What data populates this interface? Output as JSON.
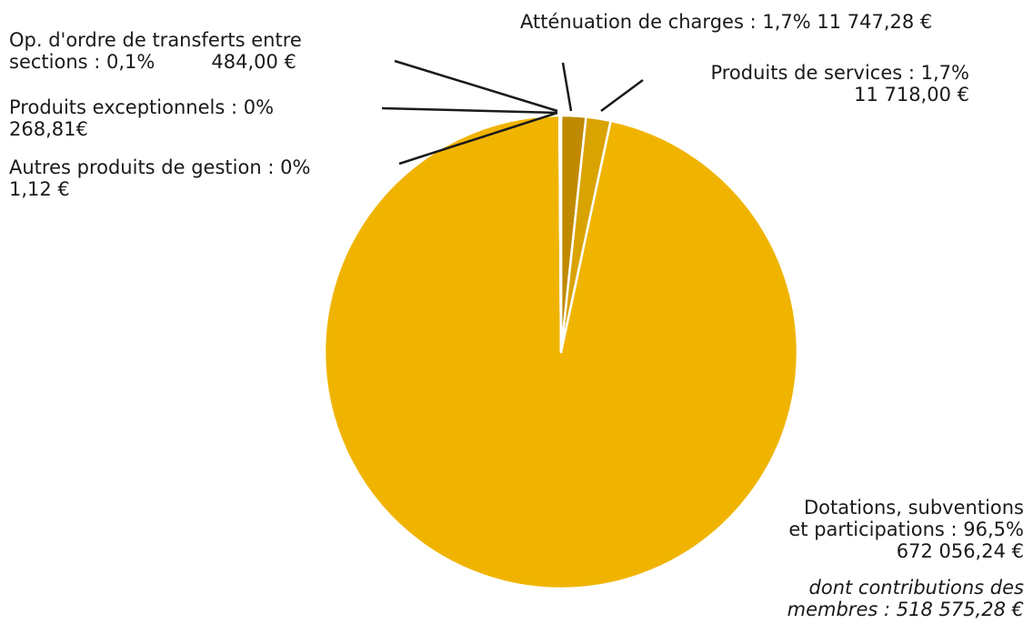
{
  "chart_data": {
    "type": "pie",
    "title": "",
    "colors": {
      "main": "#F0B400",
      "small_a": "#C08A00",
      "small_b": "#D9A300",
      "leader": "#1a1a1a",
      "separator": "#ffffff"
    },
    "slices": [
      {
        "key": "attenuation",
        "name": "Atténuation de charges",
        "percent": "1,7%",
        "amount": "11 747,28 €",
        "value": 11747.28
      },
      {
        "key": "services",
        "name": "Produits de services",
        "percent": "1,7%",
        "amount": "11 718,00 €",
        "value": 11718.0
      },
      {
        "key": "dotations",
        "name_line1": "Dotations, subventions",
        "name_line2": "et participations",
        "percent": "96,5%",
        "amount": "672 056,24 €",
        "value": 672056.24
      },
      {
        "key": "autres",
        "name": "Autres produits de gestion",
        "percent": "0%",
        "amount": "1,12 €",
        "value": 1.12
      },
      {
        "key": "exceptionnels",
        "name": "Produits exceptionnels",
        "percent": "0%",
        "amount": "268,81€",
        "value": 268.81
      },
      {
        "key": "ordre",
        "name_line1": "Op. d'ordre de transferts entre",
        "name_line2": "sections",
        "percent": "0,1%",
        "amount": "484,00 €",
        "value": 484.0
      }
    ],
    "note": {
      "line1": "dont contributions des",
      "line2": "membres : 518 575,28 €"
    }
  }
}
